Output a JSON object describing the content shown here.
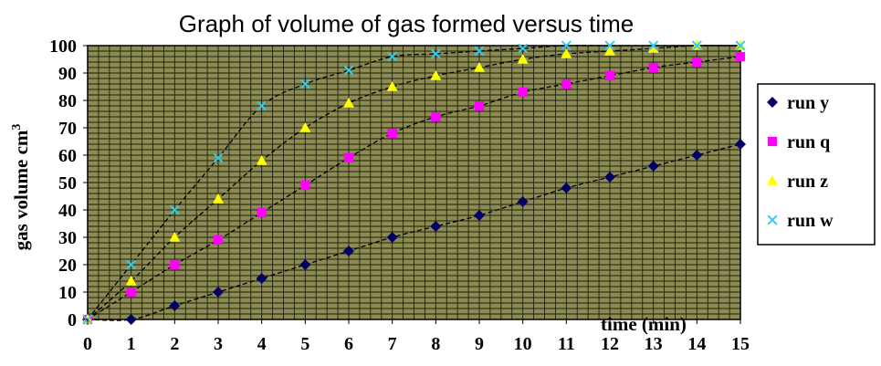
{
  "chart_data": {
    "type": "scatter",
    "title": "Graph of volume of gas formed versus time",
    "xlabel": "time (min)",
    "ylabel_main": "gas volume cm",
    "ylabel_superscript": "3",
    "xlim": [
      0,
      15
    ],
    "ylim": [
      0,
      100
    ],
    "xticks": [
      0,
      1,
      2,
      3,
      4,
      5,
      6,
      7,
      8,
      9,
      10,
      11,
      12,
      13,
      14,
      15
    ],
    "yticks": [
      0,
      10,
      20,
      30,
      40,
      50,
      60,
      70,
      80,
      90,
      100
    ],
    "grid": true,
    "grid_style": "dense horizontal and vertical lines on olive background",
    "trendlines": true,
    "legend_position": "right",
    "plot_background": "#8b8b52",
    "x": [
      0,
      1,
      2,
      3,
      4,
      5,
      6,
      7,
      8,
      9,
      10,
      11,
      12,
      13,
      14,
      15
    ],
    "series": [
      {
        "name": "run y",
        "marker": "diamond",
        "color": "#000066",
        "values": [
          0,
          0,
          5,
          10,
          15,
          20,
          25,
          30,
          34,
          38,
          43,
          48,
          52,
          56,
          60,
          64
        ]
      },
      {
        "name": "run q",
        "marker": "square",
        "color": "#ff00ff",
        "values": [
          0,
          10,
          20,
          29,
          39,
          49,
          59,
          68,
          74,
          78,
          83,
          86,
          89,
          92,
          94,
          96
        ]
      },
      {
        "name": "run z",
        "marker": "triangle",
        "color": "#ffff00",
        "values": [
          0,
          14,
          30,
          44,
          58,
          70,
          79,
          85,
          89,
          92,
          95,
          97,
          98,
          99,
          100,
          100
        ]
      },
      {
        "name": "run w",
        "marker": "x",
        "color": "#33ccee",
        "values": [
          0,
          20,
          40,
          59,
          78,
          86,
          91,
          96,
          97,
          98,
          99,
          100,
          100,
          100,
          100,
          100
        ]
      }
    ]
  }
}
